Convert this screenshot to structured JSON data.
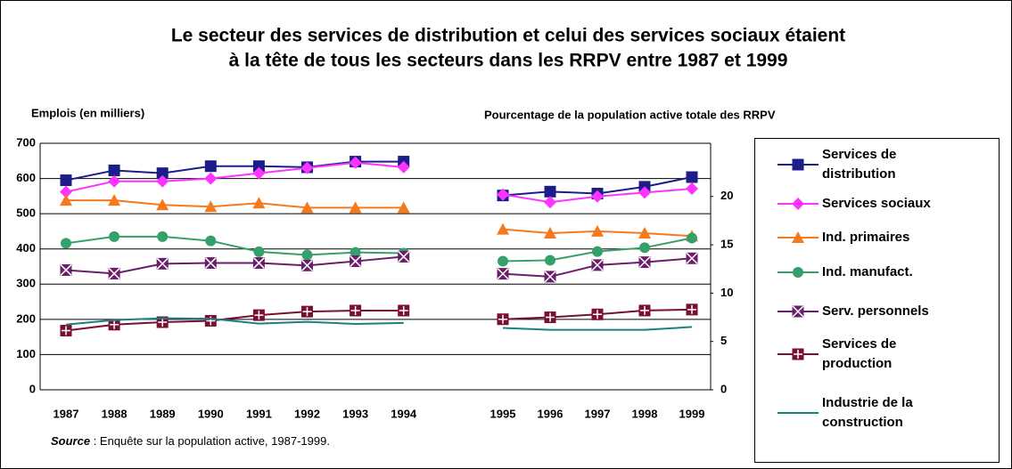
{
  "chart_data": [
    {
      "type": "line",
      "title": [
        "Le secteur des services de distribution et celui des services sociaux étaient",
        "à la tête de tous les secteurs dans les RRPV entre 1987 et 1999"
      ],
      "ylabel": "Emplois (en milliers)",
      "source_label": "Source",
      "source": " : Enquête sur la population active, 1987-1999.",
      "categories": [
        "1987",
        "1988",
        "1989",
        "1990",
        "1991",
        "1992",
        "1993",
        "1994"
      ],
      "ylim": [
        0,
        700
      ],
      "yticks": [
        0,
        100,
        200,
        300,
        400,
        500,
        600,
        700
      ],
      "grid": true,
      "series": [
        {
          "name": "Services de distribution",
          "color": "#1c1c8a",
          "marker": "square",
          "values": [
            595,
            623,
            615,
            635,
            635,
            632,
            648,
            648
          ]
        },
        {
          "name": "Services sociaux",
          "color": "#ff33ff",
          "marker": "diamond",
          "values": [
            562,
            592,
            592,
            600,
            615,
            630,
            645,
            632
          ]
        },
        {
          "name": "Ind. primaires",
          "color": "#f57a1e",
          "marker": "triangle",
          "values": [
            538,
            538,
            525,
            520,
            530,
            517,
            517,
            517
          ]
        },
        {
          "name": "Ind. manufact.",
          "color": "#35a06a",
          "marker": "circle",
          "values": [
            416,
            435,
            435,
            423,
            392,
            383,
            390,
            388
          ]
        },
        {
          "name": "Serv. personnels",
          "color": "#6a1f6a",
          "marker": "xsquare",
          "values": [
            340,
            330,
            358,
            360,
            360,
            353,
            365,
            378
          ]
        },
        {
          "name": "Services de production",
          "color": "#7a1030",
          "marker": "plussquare",
          "values": [
            168,
            185,
            192,
            196,
            212,
            222,
            225,
            225
          ]
        },
        {
          "name": "Industrie de la construction",
          "color": "#1a8080",
          "marker": "none",
          "values": [
            185,
            198,
            203,
            202,
            188,
            193,
            187,
            190
          ]
        }
      ]
    },
    {
      "type": "line",
      "ylabel": "Pourcentage de la population active  totale des RRPV",
      "categories": [
        "1995",
        "1996",
        "1997",
        "1998",
        "1999"
      ],
      "y2lim": [
        0,
        25.5
      ],
      "y2ticks": [
        0,
        5,
        10,
        15,
        20
      ],
      "series": [
        {
          "color": "#1c1c8a",
          "marker": "square",
          "axis": "y2",
          "values": [
            20.1,
            20.5,
            20.3,
            21.0,
            22.0
          ]
        },
        {
          "color": "#ff33ff",
          "marker": "diamond",
          "axis": "y2",
          "values": [
            20.2,
            19.4,
            20.0,
            20.4,
            20.8
          ]
        },
        {
          "color": "#f57a1e",
          "marker": "triangle",
          "axis": "y2",
          "values": [
            16.6,
            16.2,
            16.4,
            16.2,
            15.9
          ]
        },
        {
          "color": "#35a06a",
          "marker": "circle",
          "axis": "y2",
          "values": [
            13.3,
            13.4,
            14.3,
            14.7,
            15.7
          ]
        },
        {
          "color": "#6a1f6a",
          "marker": "xsquare",
          "axis": "y2",
          "values": [
            12.0,
            11.7,
            12.9,
            13.2,
            13.6
          ]
        },
        {
          "color": "#7a1030",
          "marker": "plussquare",
          "axis": "y2",
          "values": [
            7.3,
            7.5,
            7.8,
            8.2,
            8.3
          ]
        },
        {
          "color": "#1a8080",
          "marker": "none",
          "axis": "y2",
          "values": [
            6.4,
            6.2,
            6.2,
            6.2,
            6.5
          ]
        }
      ]
    }
  ]
}
